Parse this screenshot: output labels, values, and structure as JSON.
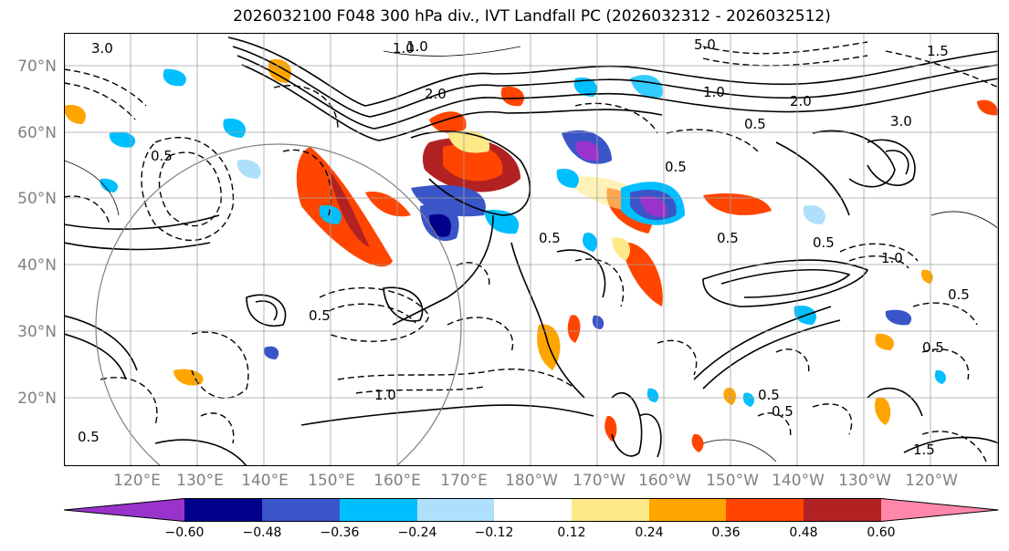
{
  "title": "2026032100 F048 300 hPa div., IVT Landfall PC (2026032312 - 2026032512)",
  "map": {
    "lat_labels": [
      "70°N",
      "60°N",
      "50°N",
      "40°N",
      "30°N",
      "20°N"
    ],
    "lon_labels": [
      "120°E",
      "130°E",
      "140°E",
      "150°E",
      "160°E",
      "170°E",
      "180°W",
      "170°W",
      "160°W",
      "150°W",
      "140°W",
      "130°W",
      "120°W"
    ],
    "contour_labels": [
      "3.0",
      "1.0",
      "2.0",
      "5.0",
      "1.5",
      "0.5",
      "0.5",
      "0.5",
      "1.0",
      "2.0",
      "3.0",
      "0.5",
      "0.5",
      "1.0",
      "0.5",
      "0.5",
      "1.0",
      "0.5",
      "0.5",
      "1.5",
      "0.5",
      "1.0",
      "0.5",
      "0.5"
    ]
  },
  "colorbar": {
    "colors": [
      "#9933cc",
      "#00008b",
      "#3a55c8",
      "#00bfff",
      "#aee0fb",
      "#ffffff",
      "#fde987",
      "#ffa500",
      "#ff4500",
      "#b22222",
      "#ff88aa"
    ],
    "tick_labels": [
      "−0.60",
      "−0.48",
      "−0.36",
      "−0.24",
      "−0.12",
      "0.12",
      "0.24",
      "0.36",
      "0.48",
      "0.60"
    ]
  }
}
